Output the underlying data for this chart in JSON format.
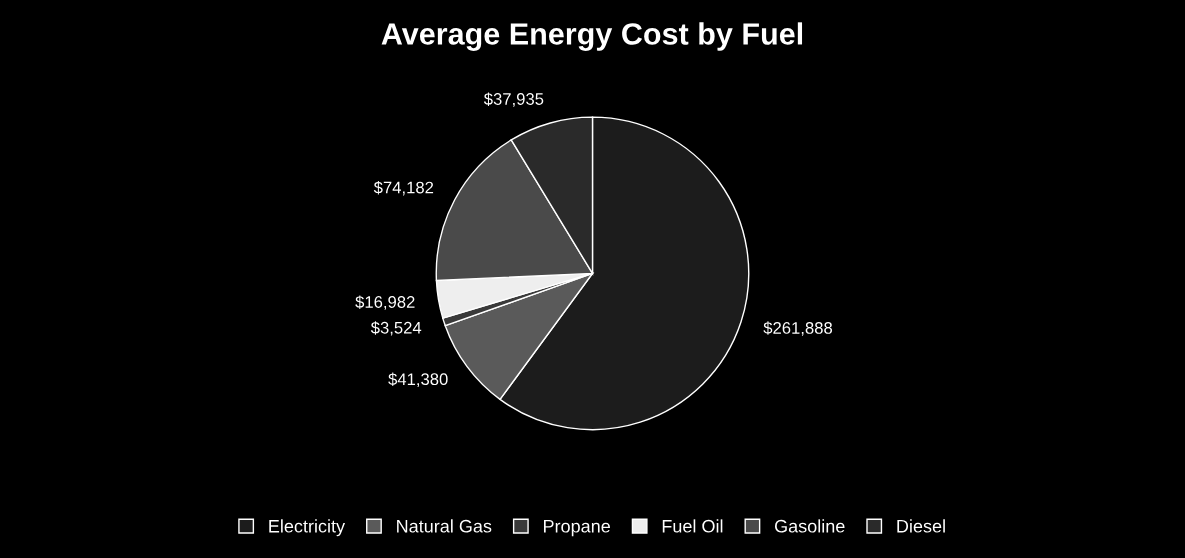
{
  "chart_data": {
    "type": "pie",
    "title": "Average Energy Cost by Fuel",
    "categories": [
      "Electricity",
      "Natural Gas",
      "Propane",
      "Fuel Oil",
      "Gasoline",
      "Diesel"
    ],
    "values": [
      261888,
      41380,
      3524,
      16982,
      74182,
      37935
    ],
    "value_labels": [
      "$261,888",
      "$41,380",
      "$3,524",
      "$16,982",
      "$74,182",
      "$37,935"
    ],
    "colors": [
      "#1c1c1c",
      "#5a5a5a",
      "#3a3a3a",
      "#eeeeee",
      "#4a4a4a",
      "#2a2a2a"
    ],
    "legend": "bottom"
  }
}
